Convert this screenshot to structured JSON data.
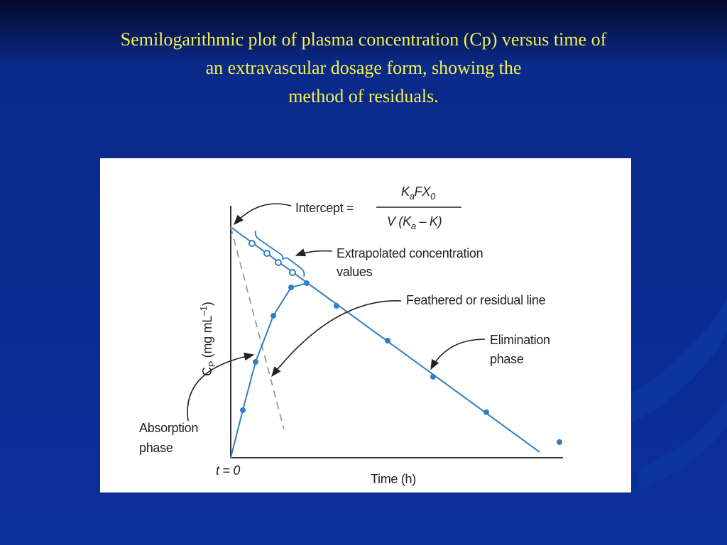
{
  "title": {
    "lines": [
      "Semilogarithmic plot of plasma concentration (Cp) versus time of",
      "an extravascular dosage form, showing the",
      "method of residuals."
    ]
  },
  "figure": {
    "intercept_label": "Intercept =",
    "numerator": [
      "K",
      "a",
      "FX",
      "0"
    ],
    "denominator": [
      "V (K",
      "a",
      " – K)"
    ],
    "y_axis_label": [
      "C",
      "P",
      " (mg mL",
      "–1",
      ")"
    ],
    "x_axis_label": "Time (h)",
    "origin_label": "t = 0",
    "extrapolated_label": [
      "Extrapolated concentration",
      "values"
    ],
    "residual_label": "Feathered or residual line",
    "elimination_label": [
      "Elimination",
      "phase"
    ],
    "absorption_label": [
      "Absorption",
      "phase"
    ]
  }
}
